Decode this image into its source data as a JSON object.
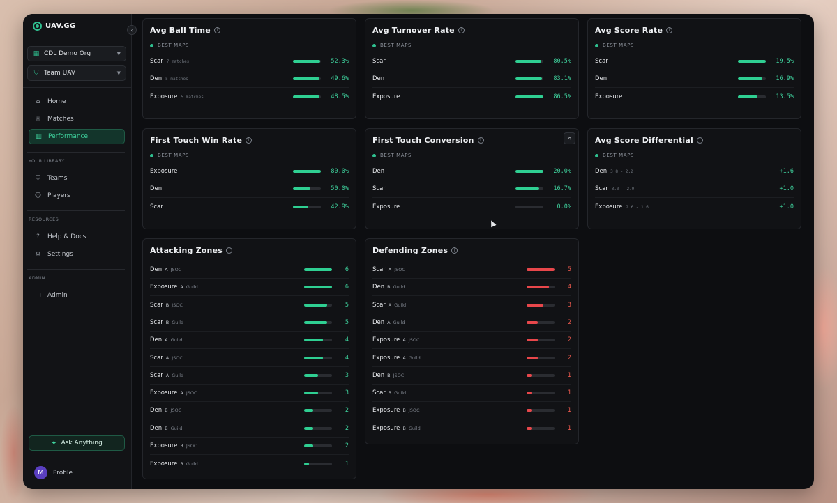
{
  "sidebar": {
    "brand": "UAV.GG",
    "org_select": "CDL Demo Org",
    "team_select": "Team UAV",
    "nav": [
      {
        "label": "Home",
        "icon": "home-icon"
      },
      {
        "label": "Matches",
        "icon": "trophy-icon"
      },
      {
        "label": "Performance",
        "icon": "chart-icon"
      }
    ],
    "library_label": "YOUR LIBRARY",
    "library": [
      {
        "label": "Teams",
        "icon": "shield-icon"
      },
      {
        "label": "Players",
        "icon": "users-icon"
      }
    ],
    "resources_label": "RESOURCES",
    "resources": [
      {
        "label": "Help & Docs",
        "icon": "help-icon"
      },
      {
        "label": "Settings",
        "icon": "gear-icon"
      }
    ],
    "admin_label": "ADMIN",
    "admin": [
      {
        "label": "Admin",
        "icon": "lock-icon"
      }
    ],
    "ask_label": "Ask Anything",
    "profile_initial": "M",
    "profile_label": "Profile"
  },
  "best_maps_label": "BEST MAPS",
  "cards": {
    "ball_time": {
      "title": "Avg Ball Time",
      "rows": [
        {
          "name": "Scar",
          "sub": "7 matches",
          "value": "52.3%",
          "pct": 0.98
        },
        {
          "name": "Den",
          "sub": "5 matches",
          "value": "49.6%",
          "pct": 0.96
        },
        {
          "name": "Exposure",
          "sub": "5 matches",
          "value": "48.5%",
          "pct": 0.94
        }
      ]
    },
    "turnover": {
      "title": "Avg Turnover Rate",
      "rows": [
        {
          "name": "Scar",
          "value": "80.5%",
          "pct": 0.93
        },
        {
          "name": "Den",
          "value": "83.1%",
          "pct": 0.96
        },
        {
          "name": "Exposure",
          "value": "86.5%",
          "pct": 1.0
        }
      ]
    },
    "score_rate": {
      "title": "Avg Score Rate",
      "rows": [
        {
          "name": "Scar",
          "value": "19.5%",
          "pct": 1.0
        },
        {
          "name": "Den",
          "value": "16.9%",
          "pct": 0.87
        },
        {
          "name": "Exposure",
          "value": "13.5%",
          "pct": 0.69
        }
      ]
    },
    "first_touch_win": {
      "title": "First Touch Win Rate",
      "rows": [
        {
          "name": "Exposure",
          "value": "80.0%",
          "pct": 1.0
        },
        {
          "name": "Den",
          "value": "50.0%",
          "pct": 0.63
        },
        {
          "name": "Scar",
          "value": "42.9%",
          "pct": 0.54
        }
      ]
    },
    "first_touch_conv": {
      "title": "First Touch Conversion",
      "rows": [
        {
          "name": "Den",
          "value": "20.0%",
          "pct": 1.0
        },
        {
          "name": "Scar",
          "value": "16.7%",
          "pct": 0.84
        },
        {
          "name": "Exposure",
          "value": "0.0%",
          "pct": 0.0
        }
      ]
    },
    "score_diff": {
      "title": "Avg Score Differential",
      "rows": [
        {
          "name": "Den",
          "sub": "3.8 - 2.2",
          "value": "+1.6"
        },
        {
          "name": "Scar",
          "sub": "3.0 - 2.0",
          "value": "+1.0"
        },
        {
          "name": "Exposure",
          "sub": "2.6 - 1.6",
          "value": "+1.0"
        }
      ]
    },
    "attacking": {
      "title": "Attacking Zones",
      "max": 6,
      "rows": [
        {
          "name": "Den",
          "side": "A",
          "mode": "JSOC",
          "value": 6
        },
        {
          "name": "Exposure",
          "side": "A",
          "mode": "Guild",
          "value": 6
        },
        {
          "name": "Scar",
          "side": "B",
          "mode": "JSOC",
          "value": 5
        },
        {
          "name": "Scar",
          "side": "B",
          "mode": "Guild",
          "value": 5
        },
        {
          "name": "Den",
          "side": "A",
          "mode": "Guild",
          "value": 4
        },
        {
          "name": "Scar",
          "side": "A",
          "mode": "JSOC",
          "value": 4
        },
        {
          "name": "Scar",
          "side": "A",
          "mode": "Guild",
          "value": 3
        },
        {
          "name": "Exposure",
          "side": "A",
          "mode": "JSOC",
          "value": 3
        },
        {
          "name": "Den",
          "side": "B",
          "mode": "JSOC",
          "value": 2
        },
        {
          "name": "Den",
          "side": "B",
          "mode": "Guild",
          "value": 2
        },
        {
          "name": "Exposure",
          "side": "B",
          "mode": "JSOC",
          "value": 2
        },
        {
          "name": "Exposure",
          "side": "B",
          "mode": "Guild",
          "value": 1
        }
      ]
    },
    "defending": {
      "title": "Defending Zones",
      "max": 5,
      "rows": [
        {
          "name": "Scar",
          "side": "A",
          "mode": "JSOC",
          "value": 5
        },
        {
          "name": "Den",
          "side": "B",
          "mode": "Guild",
          "value": 4
        },
        {
          "name": "Scar",
          "side": "A",
          "mode": "Guild",
          "value": 3
        },
        {
          "name": "Den",
          "side": "A",
          "mode": "Guild",
          "value": 2
        },
        {
          "name": "Exposure",
          "side": "A",
          "mode": "JSOC",
          "value": 2
        },
        {
          "name": "Exposure",
          "side": "A",
          "mode": "Guild",
          "value": 2
        },
        {
          "name": "Den",
          "side": "B",
          "mode": "JSOC",
          "value": 1
        },
        {
          "name": "Scar",
          "side": "B",
          "mode": "Guild",
          "value": 1
        },
        {
          "name": "Exposure",
          "side": "B",
          "mode": "JSOC",
          "value": 1
        },
        {
          "name": "Exposure",
          "side": "B",
          "mode": "Guild",
          "value": 1
        }
      ]
    }
  }
}
